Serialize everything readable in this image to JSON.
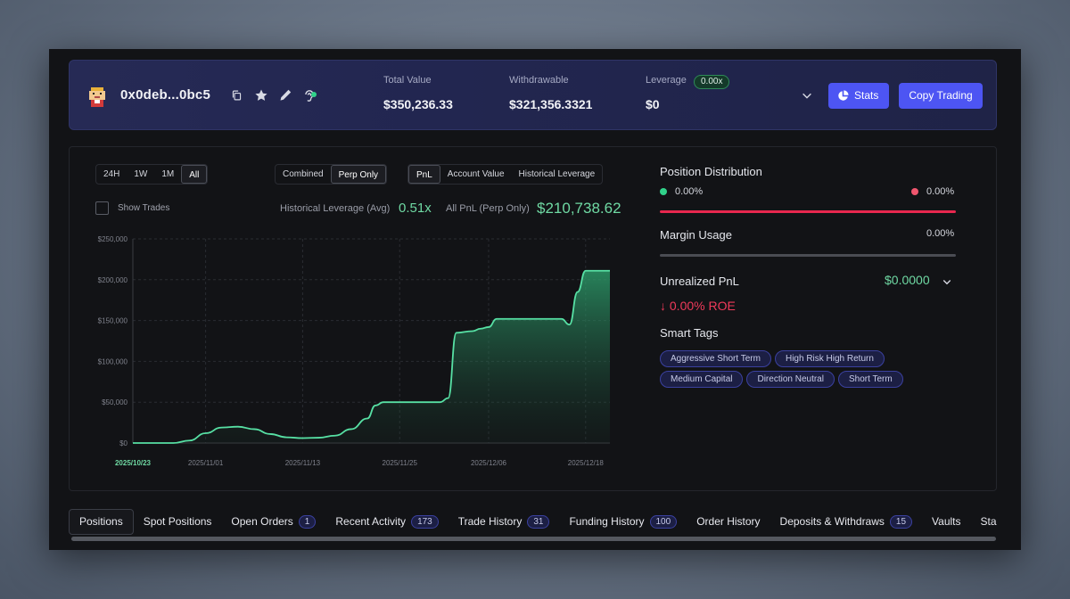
{
  "header": {
    "address": "0x0deb...0bc5",
    "total_value_label": "Total Value",
    "total_value": "$350,236.33",
    "withdrawable_label": "Withdrawable",
    "withdrawable": "$321,356.3321",
    "leverage_label": "Leverage",
    "leverage_badge": "0.00x",
    "leverage_value": "$0",
    "stats_button": "Stats",
    "copy_trading_button": "Copy Trading"
  },
  "chart_controls": {
    "ranges": [
      "24H",
      "1W",
      "1M",
      "All"
    ],
    "active_range": "All",
    "modes": [
      "Combined",
      "Perp Only"
    ],
    "active_mode": "Perp Only",
    "metrics": [
      "PnL",
      "Account Value",
      "Historical Leverage"
    ],
    "active_metric": "PnL",
    "show_trades_label": "Show Trades",
    "historical_leverage_label": "Historical Leverage (Avg)",
    "historical_leverage_value": "0.51x",
    "all_pnl_label": "All PnL (Perp Only)",
    "all_pnl_value": "$210,738.62"
  },
  "chart_data": {
    "type": "area",
    "y_ticks": [
      "$250,000",
      "$200,000",
      "$150,000",
      "$100,000",
      "$50,000",
      "$0"
    ],
    "x_ticks": [
      "2025/10/23",
      "2025/11/01",
      "2025/11/13",
      "2025/11/25",
      "2025/12/06",
      "2025/12/18"
    ],
    "ylim": [
      0,
      250000
    ],
    "grid": true,
    "series": [
      {
        "values": [
          [
            "2025/10/23",
            0
          ],
          [
            "2025/10/28",
            0
          ],
          [
            "2025/10/30",
            3000
          ],
          [
            "2025/11/01",
            12000
          ],
          [
            "2025/11/03",
            19000
          ],
          [
            "2025/11/05",
            20000
          ],
          [
            "2025/11/07",
            17000
          ],
          [
            "2025/11/09",
            11000
          ],
          [
            "2025/11/11",
            7000
          ],
          [
            "2025/11/13",
            6000
          ],
          [
            "2025/11/15",
            6500
          ],
          [
            "2025/11/17",
            9000
          ],
          [
            "2025/11/19",
            17000
          ],
          [
            "2025/11/21",
            30000
          ],
          [
            "2025/11/22",
            46000
          ],
          [
            "2025/11/23",
            50000
          ],
          [
            "2025/11/30",
            50000
          ],
          [
            "2025/12/01",
            55000
          ],
          [
            "2025/12/02",
            135000
          ],
          [
            "2025/12/04",
            137000
          ],
          [
            "2025/12/05",
            140000
          ],
          [
            "2025/12/06",
            142000
          ],
          [
            "2025/12/07",
            152000
          ],
          [
            "2025/12/15",
            152000
          ],
          [
            "2025/12/16",
            145000
          ],
          [
            "2025/12/17",
            185000
          ],
          [
            "2025/12/18",
            211000
          ],
          [
            "2025/12/21",
            211000
          ]
        ]
      }
    ],
    "line_color": "#57e0a4"
  },
  "position_distribution": {
    "title": "Position Distribution",
    "long_pct": "0.00%",
    "short_pct": "0.00%",
    "long_color": "#31d28a",
    "short_color": "#f0566e"
  },
  "margin_usage": {
    "title": "Margin Usage",
    "value": "0.00%"
  },
  "unrealized_pnl": {
    "title": "Unrealized PnL",
    "value": "$0.0000",
    "roe": "↓ 0.00% ROE"
  },
  "smart_tags": {
    "title": "Smart Tags",
    "tags": [
      "Aggressive Short Term",
      "High Risk High Return",
      "Medium Capital",
      "Direction Neutral",
      "Short Term"
    ]
  },
  "tabs": [
    {
      "label": "Positions",
      "count": null,
      "active": true
    },
    {
      "label": "Spot Positions",
      "count": null
    },
    {
      "label": "Open Orders",
      "count": "1"
    },
    {
      "label": "Recent Activity",
      "count": "173"
    },
    {
      "label": "Trade History",
      "count": "31"
    },
    {
      "label": "Funding History",
      "count": "100"
    },
    {
      "label": "Order History",
      "count": null
    },
    {
      "label": "Deposits & Withdraws",
      "count": "15"
    },
    {
      "label": "Vaults",
      "count": null
    },
    {
      "label": "Staking",
      "count": null
    }
  ]
}
